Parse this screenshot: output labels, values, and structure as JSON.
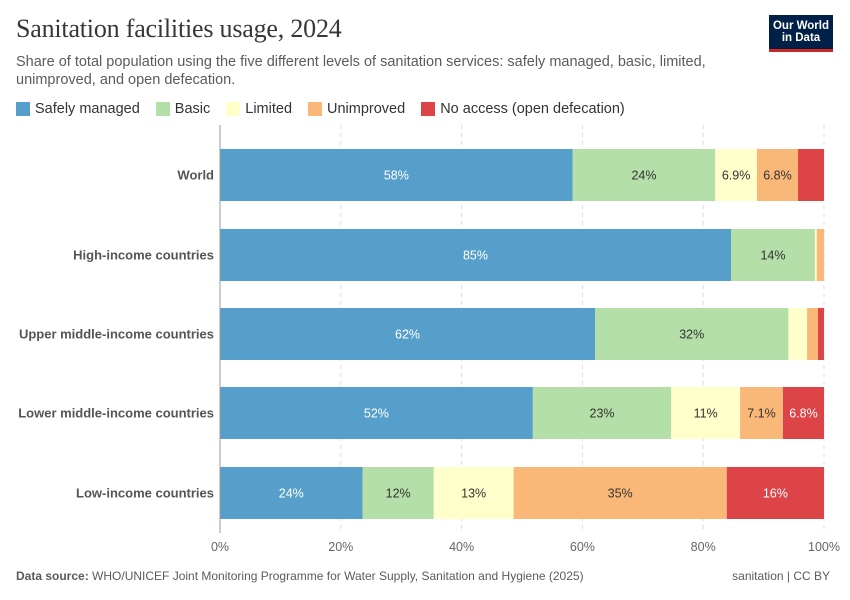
{
  "header": {
    "title": "Sanitation facilities usage, 2024",
    "subtitle": "Share of total population using the five different levels of sanitation services: safely managed, basic, limited, unimproved, and open defecation.",
    "logo_line1": "Our World",
    "logo_line2": "in Data"
  },
  "footer": {
    "source_label": "Data source:",
    "source_text": "WHO/UNICEF Joint Monitoring Programme for Water Supply, Sanitation and Hygiene (2025)",
    "right_text": "sanitation | CC BY"
  },
  "chart_data": {
    "type": "bar",
    "orientation": "horizontal",
    "stacked": true,
    "categories": [
      "World",
      "High-income countries",
      "Upper middle-income countries",
      "Lower middle-income countries",
      "Low-income countries"
    ],
    "series": [
      {
        "name": "Safely managed",
        "color": "#579fcb",
        "values": [
          58.4,
          84.6,
          62.1,
          51.8,
          23.6
        ],
        "labels": [
          "58%",
          "85%",
          "62%",
          "52%",
          "24%"
        ]
      },
      {
        "name": "Basic",
        "color": "#b4dfa8",
        "values": [
          23.6,
          13.9,
          32.0,
          22.9,
          11.8
        ],
        "labels": [
          "24%",
          "14%",
          "32%",
          "23%",
          "12%"
        ]
      },
      {
        "name": "Limited",
        "color": "#ffffcb",
        "values": [
          6.9,
          0.3,
          3.1,
          11.4,
          13.2
        ],
        "labels": [
          "6.9%",
          "",
          "",
          "11%",
          "13%"
        ]
      },
      {
        "name": "Unimproved",
        "color": "#fab878",
        "values": [
          6.8,
          1.2,
          1.8,
          7.1,
          35.3
        ],
        "labels": [
          "6.8%",
          "",
          "",
          "7.1%",
          "35%"
        ]
      },
      {
        "name": "No access (open defecation)",
        "color": "#dd4447",
        "values": [
          4.3,
          0.0,
          1.0,
          6.8,
          16.1
        ],
        "labels": [
          "",
          "",
          "",
          "6.8%",
          "16%"
        ]
      }
    ],
    "xlim": [
      0,
      100
    ],
    "xticks": [
      "0%",
      "20%",
      "40%",
      "60%",
      "80%",
      "100%"
    ],
    "legend_position": "top-left",
    "grid": true
  }
}
